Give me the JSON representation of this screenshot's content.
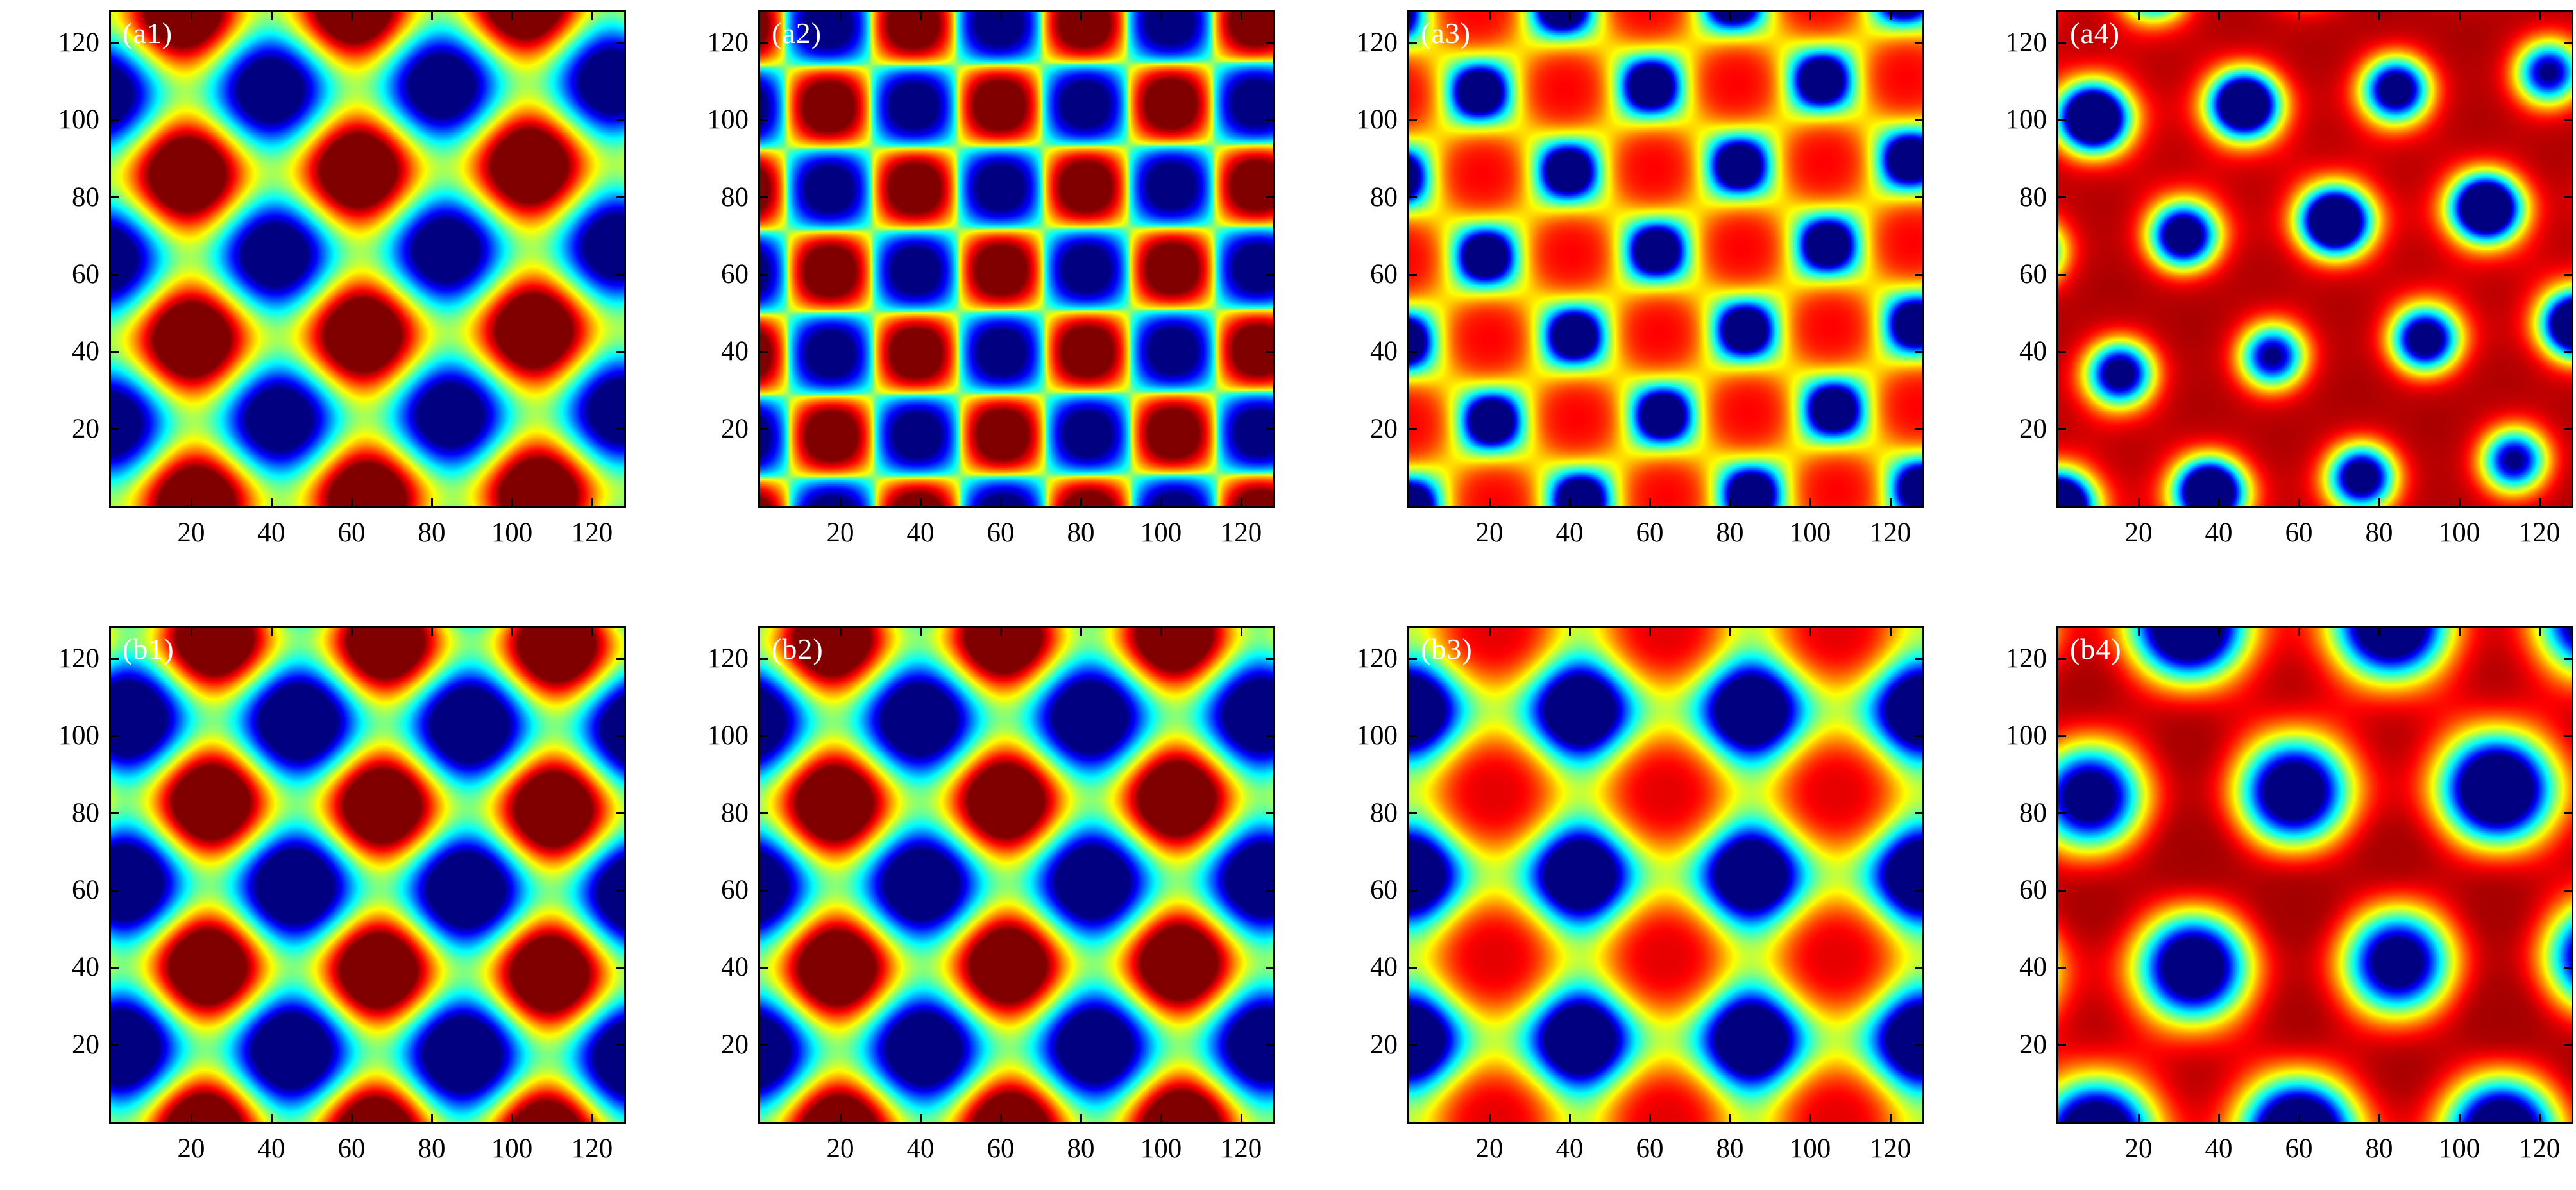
{
  "figure": {
    "description": "2x4 grid of simulated 2D reaction-diffusion pattern snapshots rendered as heatmaps with a jet colormap",
    "background": "#ffffff",
    "grid_rows": 2,
    "grid_cols": 4
  },
  "axes": {
    "x_ticks": [
      "20",
      "40",
      "60",
      "80",
      "100",
      "120"
    ],
    "y_ticks": [
      "20",
      "40",
      "60",
      "80",
      "100",
      "120"
    ],
    "x_range": [
      0,
      128
    ],
    "y_range": [
      0,
      128
    ],
    "tick_color": "#000000",
    "frame_color": "#000000",
    "tick_direction": "in"
  },
  "colormap": {
    "name": "jet",
    "stops": [
      "#00008f",
      "#0000ff",
      "#00ffff",
      "#ffff00",
      "#ff0000",
      "#7f0000"
    ]
  },
  "chart_data": [
    {
      "type": "heatmap",
      "label": "(a1)",
      "row": 0,
      "col": 0,
      "pattern": "mixed-square",
      "description": "alternating red (max) and blue (min) blobs on interleaved square lattices, yellow-green background; red rows near y=0,43,85,128 at x=21,64,107; blue rows near y=21,64,107 at x=0,43,85,128",
      "wavelength": 42.667,
      "rotation_deg": 1.5,
      "phase_x": 21.33,
      "phase_y": 0,
      "gain": 1.55,
      "bias": 0.08
    },
    {
      "type": "heatmap",
      "label": "(a2)",
      "row": 0,
      "col": 1,
      "pattern": "checkerboard",
      "description": "checkerboard of small red and blue rounded-square spots (about 6 per row, spacing ~21) on a green background",
      "wavelength": 42.667,
      "rotation_deg": 0.5,
      "phase_x": 18,
      "phase_y": 18,
      "sharp": 0.6,
      "gain": 1.3,
      "bias": 0.03
    },
    {
      "type": "heatmap",
      "label": "(a3)",
      "row": 0,
      "col": 2,
      "pattern": "spots-checker",
      "description": "dense lattice of blue circular spots (diameter ~16, rows offset by half a period, row spacing ~21) with cyan-yellow rings on a red background",
      "wavelength": 42.667,
      "rotation_deg": 2,
      "phase_x": 0,
      "phase_y": 0,
      "k": 3,
      "amp": 2.5,
      "bg": 0.63,
      "web": 0.12
    },
    {
      "type": "heatmap",
      "label": "(a4)",
      "row": 0,
      "col": 3,
      "pattern": "spots-hex",
      "description": "slightly disordered hexagonal lattice of blue circular spots (spacing ~38) with cyan-yellow halos on a dark red background with darker red webbing",
      "wavelength": 33,
      "rotation_deg": 36,
      "phase_x": 0,
      "phase_y": 0,
      "k": 2.5,
      "amp": 2.3,
      "bg": 0.82,
      "web": 0.15,
      "wobble": 0.45,
      "wob_kx": 0.055,
      "wob_ky": 0.035,
      "wob_phase": 1.2
    },
    {
      "type": "heatmap",
      "label": "(b1)",
      "row": 1,
      "col": 0,
      "pattern": "mixed-square",
      "description": "large smooth alternating red and blue blobs on interleaved square lattices (period ~43), green background",
      "wavelength": 42.667,
      "rotation_deg": -1.2,
      "phase_x": 23.3,
      "phase_y": -2,
      "gain": 1.7,
      "bias": 0.0
    },
    {
      "type": "heatmap",
      "label": "(b2)",
      "row": 1,
      "col": 1,
      "pattern": "mixed-square",
      "description": "large smooth alternating red and blue blobs, nearly identical to (b1)",
      "wavelength": 42.667,
      "rotation_deg": 0.8,
      "phase_x": 19.8,
      "phase_y": -3,
      "gain": 1.65,
      "bias": 0.02
    },
    {
      "type": "heatmap",
      "label": "(b3)",
      "row": 1,
      "col": 2,
      "pattern": "spots-square",
      "description": "large blue circular spots (diameter ~26) on a square lattice (spacing ~43, rows near y=21,64,107 at x=0,43,85,128) with cyan-yellow rings on a red background",
      "wavelength": 42.667,
      "rotation_deg": 0,
      "phase_x": 0,
      "phase_y": 21.33,
      "k": 2.2,
      "amp": 2.6,
      "bg": 0.7,
      "web": 0.1
    },
    {
      "type": "heatmap",
      "label": "(b4)",
      "row": 1,
      "col": 3,
      "pattern": "spots-hex",
      "description": "sparse hexagonal lattice of large blue circular spots (spacing ~51) with cyan-yellow halos on a dark red background with darker red webbing",
      "wavelength": 44,
      "rotation_deg": 31,
      "phase_x": 6,
      "phase_y": -8,
      "k": 1.6,
      "amp": 2.4,
      "bg": 0.85,
      "web": 0.13,
      "wobble": 0.3,
      "wob_kx": 0.045,
      "wob_ky": 0.03,
      "wob_phase": 0.5
    }
  ]
}
